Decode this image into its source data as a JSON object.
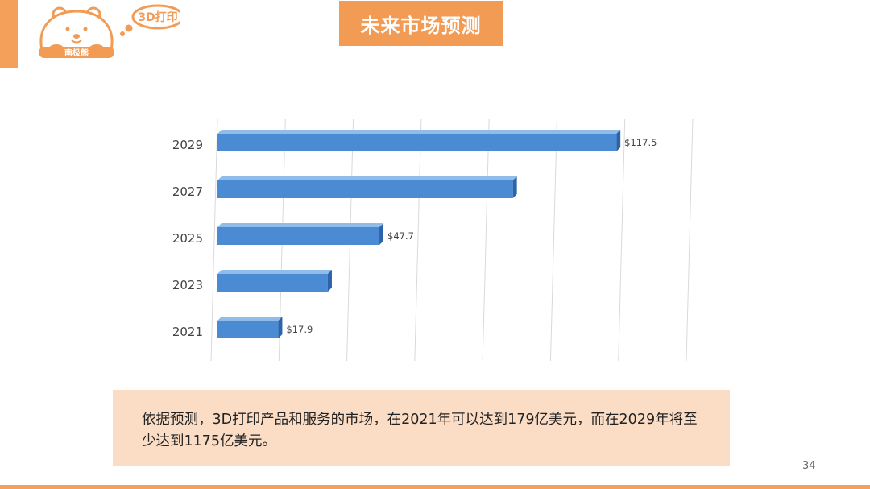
{
  "header": {
    "title": "未来市场预测",
    "logo_badge": "3D打印",
    "logo_name": "南极熊"
  },
  "colors": {
    "accent": "#f29b54",
    "bar_front": "#4a8bd4",
    "bar_top": "#8fbce8",
    "bar_side": "#2c64a8",
    "caption_bg": "#fbdcc5"
  },
  "chart_data": {
    "type": "bar",
    "orientation": "horizontal",
    "categories": [
      "2029",
      "2027",
      "2025",
      "2023",
      "2021"
    ],
    "values": [
      117.5,
      87.0,
      47.7,
      32.5,
      17.9
    ],
    "data_labels": [
      "$117.5",
      "",
      "$47.7",
      "",
      "$17.9"
    ],
    "xlim": [
      0,
      140
    ],
    "grid": true,
    "legend": "none"
  },
  "caption": {
    "text": "依据预测，3D打印产品和服务的市场，在2021年可以达到179亿美元，而在2029年将至少达到1175亿美元。"
  },
  "page_number": "34"
}
